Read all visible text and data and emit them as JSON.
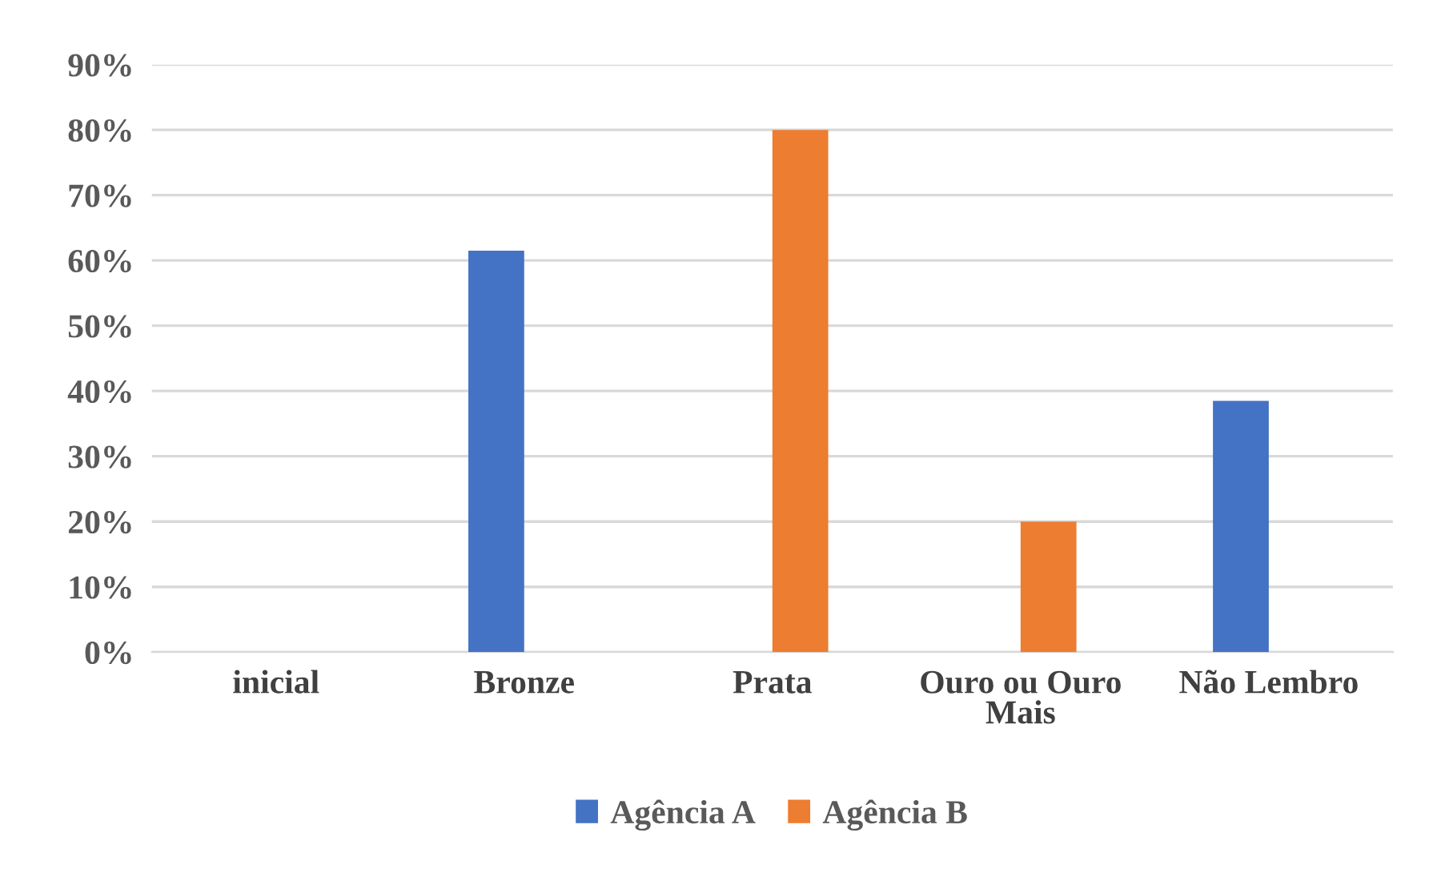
{
  "chart_data": {
    "type": "bar",
    "categories": [
      "inicial",
      "Bronze",
      "Prata",
      "Ouro ou Ouro\nMais",
      "Não Lembro"
    ],
    "series": [
      {
        "name": "Agência A",
        "color": "#4472c4",
        "values": [
          0,
          61.5,
          0,
          0,
          38.5
        ]
      },
      {
        "name": "Agência B",
        "color": "#ed7d31",
        "values": [
          0,
          0,
          80,
          20,
          0
        ]
      }
    ],
    "ylim": [
      0,
      90
    ],
    "yticks": [
      {
        "value": 0,
        "label": "0%"
      },
      {
        "value": 10,
        "label": "10%"
      },
      {
        "value": 20,
        "label": "20%"
      },
      {
        "value": 30,
        "label": "30%"
      },
      {
        "value": 40,
        "label": "40%"
      },
      {
        "value": 50,
        "label": "50%"
      },
      {
        "value": 60,
        "label": "60%"
      },
      {
        "value": 70,
        "label": "70%"
      },
      {
        "value": 80,
        "label": "80%"
      },
      {
        "value": 90,
        "label": "90%"
      }
    ],
    "grid": "y",
    "legend": "bottom"
  }
}
